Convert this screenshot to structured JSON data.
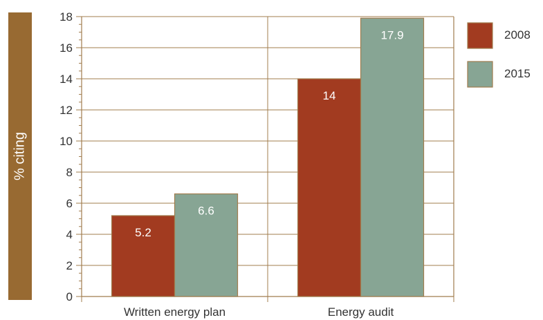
{
  "chart_data": {
    "type": "bar",
    "ylabel": "% citing",
    "xlabel": "",
    "categories": [
      "Written energy plan",
      "Energy audit"
    ],
    "series": [
      {
        "name": "2008",
        "values": [
          5.2,
          14
        ],
        "color": "#a23b20"
      },
      {
        "name": "2015",
        "values": [
          6.6,
          17.9
        ],
        "color": "#87a594"
      }
    ],
    "data_labels": [
      [
        "5.2",
        "14"
      ],
      [
        "6.6",
        "17.9"
      ]
    ],
    "ylim": [
      0,
      18
    ],
    "yticks": [
      0,
      2,
      4,
      6,
      8,
      10,
      12,
      14,
      16,
      18
    ],
    "grid": true,
    "legend_position": "right",
    "colors": {
      "axis": "#a07c4e",
      "band": "#986a32",
      "bar_border": "#a07c4e"
    }
  }
}
